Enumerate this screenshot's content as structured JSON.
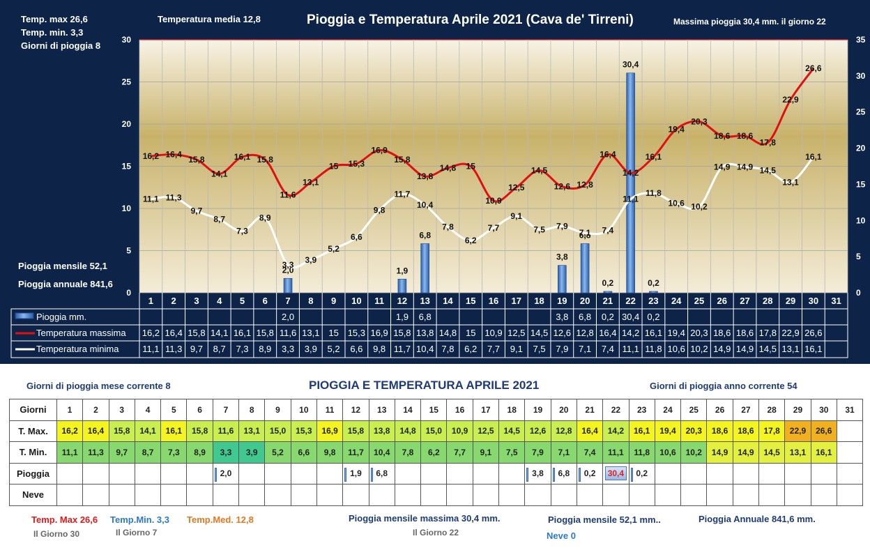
{
  "header": {
    "title": "Pioggia e Temperatura Aprile 2021 (Cava de' Tirreni)",
    "temp_max_label": "Temp. max  26,6",
    "temp_min_label": "Temp.  min. 3,3",
    "rain_days_label": "Giorni  di pioggia    8",
    "temp_media_label": "Temperatura media   12,8",
    "max_rain_label": "Massima pioggia   30,4 mm. il giorno    22",
    "monthly_rain_label": "Pioggia mensile     52,1",
    "annual_rain_label": "Pioggia annuale    841,6"
  },
  "chart_data": {
    "type": "bar",
    "title": "Pioggia e Temperatura Aprile 2021 (Cava de' Tirreni)",
    "categories": [
      "1",
      "2",
      "3",
      "4",
      "5",
      "6",
      "7",
      "8",
      "9",
      "10",
      "11",
      "12",
      "13",
      "14",
      "15",
      "16",
      "17",
      "18",
      "19",
      "20",
      "21",
      "22",
      "23",
      "24",
      "25",
      "26",
      "27",
      "28",
      "29",
      "30",
      "31"
    ],
    "y_left_ticks": [
      "0",
      "5",
      "10",
      "15",
      "20",
      "25",
      "30"
    ],
    "y_right_ticks": [
      "0",
      "5",
      "10",
      "15",
      "20",
      "25",
      "30",
      "35"
    ],
    "ylim_left": [
      0,
      30
    ],
    "ylim_right": [
      0,
      35
    ],
    "rain_labels": [
      "",
      "",
      "",
      "",
      "",
      "",
      "2,0",
      "",
      "",
      "",
      "",
      "1,9",
      "6,8",
      "",
      "",
      "",
      "",
      "",
      "3,8",
      "6,8",
      "0,2",
      "30,4",
      "0,2",
      "",
      "",
      "",
      "",
      "",
      "",
      "",
      ""
    ],
    "tmax_labels": [
      "16,2",
      "16,4",
      "15,8",
      "14,1",
      "16,1",
      "15,8",
      "11,6",
      "13,1",
      "15",
      "15,3",
      "16,9",
      "15,8",
      "13,8",
      "14,8",
      "15",
      "10,9",
      "12,5",
      "14,5",
      "12,6",
      "12,8",
      "16,4",
      "14,2",
      "16,1",
      "19,4",
      "20,3",
      "18,6",
      "18,6",
      "17,8",
      "22,9",
      "26,6",
      ""
    ],
    "tmin_labels": [
      "11,1",
      "11,3",
      "9,7",
      "8,7",
      "7,3",
      "8,9",
      "3,3",
      "3,9",
      "5,2",
      "6,6",
      "9,8",
      "11,7",
      "10,4",
      "7,8",
      "6,2",
      "7,7",
      "9,1",
      "7,5",
      "7,9",
      "7,1",
      "7,4",
      "11,1",
      "11,8",
      "10,6",
      "10,2",
      "14,9",
      "14,9",
      "14,5",
      "13,1",
      "16,1",
      ""
    ],
    "series": [
      {
        "name": "Pioggia mm.",
        "axis": "right",
        "color": "#4a86d8",
        "values": [
          null,
          null,
          null,
          null,
          null,
          null,
          2.0,
          null,
          null,
          null,
          null,
          1.9,
          6.8,
          null,
          null,
          null,
          null,
          null,
          3.8,
          6.8,
          0.2,
          30.4,
          0.2,
          null,
          null,
          null,
          null,
          null,
          null,
          null,
          null
        ]
      },
      {
        "name": "Temperatura massima",
        "axis": "left",
        "color": "#e01010",
        "values": [
          16.2,
          16.4,
          15.8,
          14.1,
          16.1,
          15.8,
          11.6,
          13.1,
          15,
          15.3,
          16.9,
          15.8,
          13.8,
          14.8,
          15,
          10.9,
          12.5,
          14.5,
          12.6,
          12.8,
          16.4,
          14.2,
          16.1,
          19.4,
          20.3,
          18.6,
          18.6,
          17.8,
          22.9,
          26.6,
          null
        ]
      },
      {
        "name": "Temperatura minima",
        "axis": "left",
        "color": "#ffffff",
        "values": [
          11.1,
          11.3,
          9.7,
          8.7,
          7.3,
          8.9,
          3.3,
          3.9,
          5.2,
          6.6,
          9.8,
          11.7,
          10.4,
          7.8,
          6.2,
          7.7,
          9.1,
          7.5,
          7.9,
          7.1,
          7.4,
          11.1,
          11.8,
          10.6,
          10.2,
          14.9,
          14.9,
          14.5,
          13.1,
          16.1,
          null
        ]
      }
    ],
    "legend": "table-below"
  },
  "summary": {
    "rain_days_month": "Giorni di pioggia  mese corrente    8",
    "title": "PIOGGIA E TEMPERATURA APRILE 2021",
    "rain_days_year": "Giorni di pioggia  anno corrente   54",
    "temp_max": "Temp. Max  26,6",
    "temp_max_day": "Il Giorno  30",
    "temp_min": "Temp.Min.  3,3",
    "temp_min_day": "Il Giorno  7",
    "temp_med": "Temp.Med. 12,8",
    "max_monthly_rain": "Pioggia mensile massima 30,4   mm.",
    "max_monthly_rain_day": "Il Giorno 22",
    "monthly_rain": "Pioggia mensile   52,1    mm..",
    "annual_rain": "Pioggia Annuale  841,6    mm.",
    "snow": "Neve 0"
  },
  "table": {
    "row_labels": [
      "Giorni",
      "T. Max.",
      "T. Min.",
      "Pioggia",
      "Neve"
    ],
    "tmax": [
      "16,2",
      "16,4",
      "15,8",
      "14,1",
      "16,1",
      "15,8",
      "11,6",
      "13,1",
      "15,0",
      "15,3",
      "16,9",
      "15,8",
      "13,8",
      "14,8",
      "15,0",
      "10,9",
      "12,5",
      "14,5",
      "12,6",
      "12,8",
      "16,4",
      "14,2",
      "16,1",
      "19,4",
      "20,3",
      "18,6",
      "18,6",
      "17,8",
      "22,9",
      "26,6",
      ""
    ],
    "tmin": [
      "11,1",
      "11,3",
      "9,7",
      "8,7",
      "7,3",
      "8,9",
      "3,3",
      "3,9",
      "5,2",
      "6,6",
      "9,8",
      "11,7",
      "10,4",
      "7,8",
      "6,2",
      "7,7",
      "9,1",
      "7,5",
      "7,9",
      "7,1",
      "7,4",
      "11,1",
      "11,8",
      "10,6",
      "10,2",
      "14,9",
      "14,9",
      "14,5",
      "13,1",
      "16,1",
      ""
    ],
    "rain": [
      "",
      "",
      "",
      "",
      "",
      "",
      "2,0",
      "",
      "",
      "",
      "",
      "1,9",
      "6,8",
      "",
      "",
      "",
      "",
      "",
      "3,8",
      "6,8",
      "0,2",
      "30,4",
      "0,2",
      "",
      "",
      "",
      "",
      "",
      "",
      "",
      ""
    ],
    "colors": {
      "tmax_low": "#c8ee50",
      "tmax_mid": "#f4f420",
      "tmax_high": "#f0b020",
      "tmin_low": "#40c890",
      "tmin_mid": "#88d870",
      "tmin_high": "#e4f040"
    }
  }
}
